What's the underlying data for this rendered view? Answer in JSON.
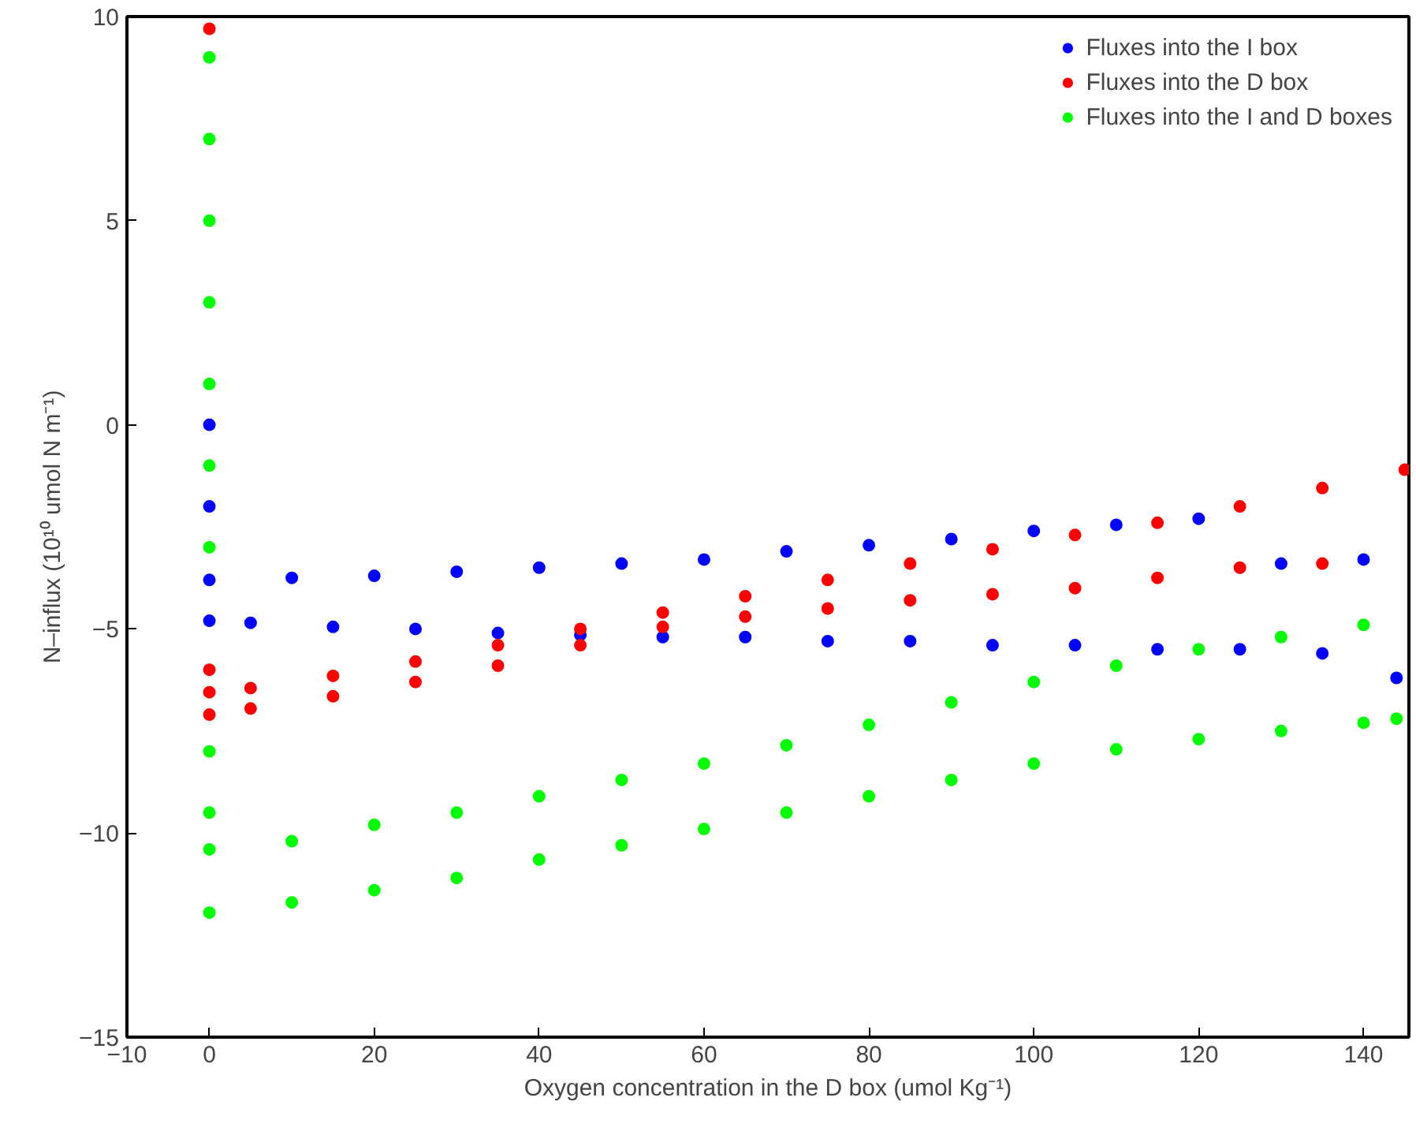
{
  "chart_data": {
    "type": "scatter",
    "xlabel": "Oxygen concentration in the D box (umol Kg⁻¹)",
    "ylabel": "N–influx (10¹⁰ umol N m⁻¹)",
    "xlim": [
      -10,
      145.5
    ],
    "ylim": [
      -15,
      10
    ],
    "xticks": [
      -10,
      0,
      20,
      40,
      60,
      80,
      100,
      120,
      140
    ],
    "yticks": [
      -15,
      -10,
      -5,
      0,
      5,
      10
    ],
    "grid": false,
    "legend": "top right",
    "marker": "circle",
    "series": [
      {
        "name": "Fluxes into the I box",
        "color": "#0000ff",
        "x": [
          0,
          0,
          0,
          10,
          20,
          30,
          40,
          50,
          60,
          70,
          80,
          90,
          100,
          110,
          120,
          130,
          140,
          0,
          5,
          15,
          25,
          35,
          45,
          55,
          65,
          75,
          85,
          95,
          105,
          115,
          125,
          135,
          144
        ],
        "values": [
          0,
          -2,
          -3.8,
          -3.75,
          -3.7,
          -3.6,
          -3.5,
          -3.4,
          -3.3,
          -3.1,
          -2.95,
          -2.8,
          -2.6,
          -2.45,
          -2.3,
          -3.4,
          -3.3,
          -4.8,
          -4.85,
          -4.95,
          -5.0,
          -5.1,
          -5.15,
          -5.2,
          -5.2,
          -5.3,
          -5.3,
          -5.4,
          -5.4,
          -5.5,
          -5.5,
          -5.6,
          -6.2
        ]
      },
      {
        "name": "Fluxes into the D box",
        "color": "#ff0000",
        "x": [
          0,
          0,
          0,
          5,
          15,
          25,
          35,
          45,
          55,
          65,
          75,
          85,
          95,
          105,
          115,
          125,
          135,
          145,
          0,
          5,
          15,
          25,
          35,
          45,
          55,
          65,
          75,
          85,
          95,
          105,
          115,
          125,
          135
        ],
        "values": [
          9.7,
          -6,
          -6.55,
          -6.45,
          -6.15,
          -5.8,
          -5.4,
          -5.0,
          -4.6,
          -4.2,
          -3.8,
          -3.4,
          -3.05,
          -2.7,
          -2.4,
          -2.0,
          -1.55,
          -1.1,
          -7.1,
          -6.95,
          -6.65,
          -6.3,
          -5.9,
          -5.4,
          -4.95,
          -4.7,
          -4.5,
          -4.3,
          -4.15,
          -4.0,
          -3.75,
          -3.5,
          -3.4
        ]
      },
      {
        "name": "Fluxes into the I and D boxes",
        "color": "#00ff00",
        "x": [
          0,
          0,
          0,
          0,
          0,
          0,
          0,
          0,
          0,
          0,
          10,
          20,
          30,
          40,
          50,
          60,
          70,
          80,
          90,
          100,
          110,
          120,
          130,
          140,
          0,
          10,
          20,
          30,
          40,
          50,
          60,
          70,
          80,
          90,
          100,
          110,
          120,
          130,
          140,
          144
        ],
        "values": [
          9.0,
          7,
          5,
          3,
          1,
          -1,
          -3,
          -8,
          -9.5,
          -10.4,
          -10.2,
          -9.8,
          -9.5,
          -9.1,
          -8.7,
          -8.3,
          -7.85,
          -7.35,
          -6.8,
          -6.3,
          -5.9,
          -5.5,
          -5.2,
          -4.9,
          -11.95,
          -11.7,
          -11.4,
          -11.1,
          -10.65,
          -10.3,
          -9.9,
          -9.5,
          -9.1,
          -8.7,
          -8.3,
          -7.95,
          -7.7,
          -7.5,
          -7.3,
          -7.2
        ]
      }
    ]
  }
}
